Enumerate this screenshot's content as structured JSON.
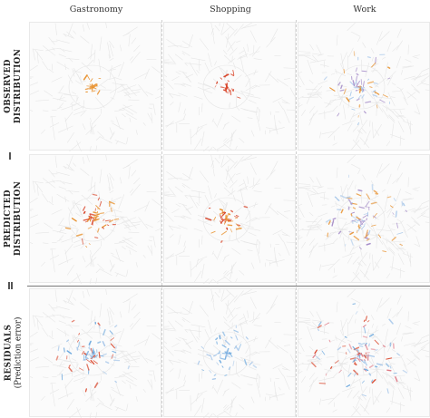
{
  "columns": [
    "Gastronomy",
    "Shopping",
    "Work"
  ],
  "rows": [
    {
      "label": "OBSERVED",
      "label2": "DISTRIBUTION",
      "sub": "",
      "marker": "single"
    },
    {
      "label": "PREDICTED",
      "label2": "DISTRIBUTION",
      "sub": "",
      "marker": "double"
    },
    {
      "label": "RESIDUALS",
      "label2": "",
      "sub": "(Prediction error)",
      "marker": "none"
    }
  ],
  "colors": {
    "street": "#e6e6e6",
    "orange": "#e8902c",
    "red": "#d9452a",
    "blue": "#69a6dd",
    "light_blue": "#a9c8ea",
    "pink": "#e07a86",
    "purple": "#a58cc8"
  },
  "panels": [
    {
      "row": 0,
      "col": 0,
      "intensity": 0.15,
      "palette": [
        "orange"
      ]
    },
    {
      "row": 0,
      "col": 1,
      "intensity": 0.2,
      "palette": [
        "red"
      ]
    },
    {
      "row": 0,
      "col": 2,
      "intensity": 0.7,
      "palette": [
        "orange",
        "light_blue",
        "purple"
      ]
    },
    {
      "row": 1,
      "col": 0,
      "intensity": 0.5,
      "palette": [
        "orange",
        "red"
      ]
    },
    {
      "row": 1,
      "col": 1,
      "intensity": 0.35,
      "palette": [
        "orange",
        "red"
      ]
    },
    {
      "row": 1,
      "col": 2,
      "intensity": 0.9,
      "palette": [
        "light_blue",
        "orange",
        "purple"
      ]
    },
    {
      "row": 2,
      "col": 0,
      "intensity": 0.75,
      "palette": [
        "blue",
        "light_blue",
        "red"
      ]
    },
    {
      "row": 2,
      "col": 1,
      "intensity": 0.5,
      "palette": [
        "blue",
        "light_blue"
      ]
    },
    {
      "row": 2,
      "col": 2,
      "intensity": 1.0,
      "palette": [
        "blue",
        "pink",
        "light_blue",
        "red"
      ]
    }
  ]
}
